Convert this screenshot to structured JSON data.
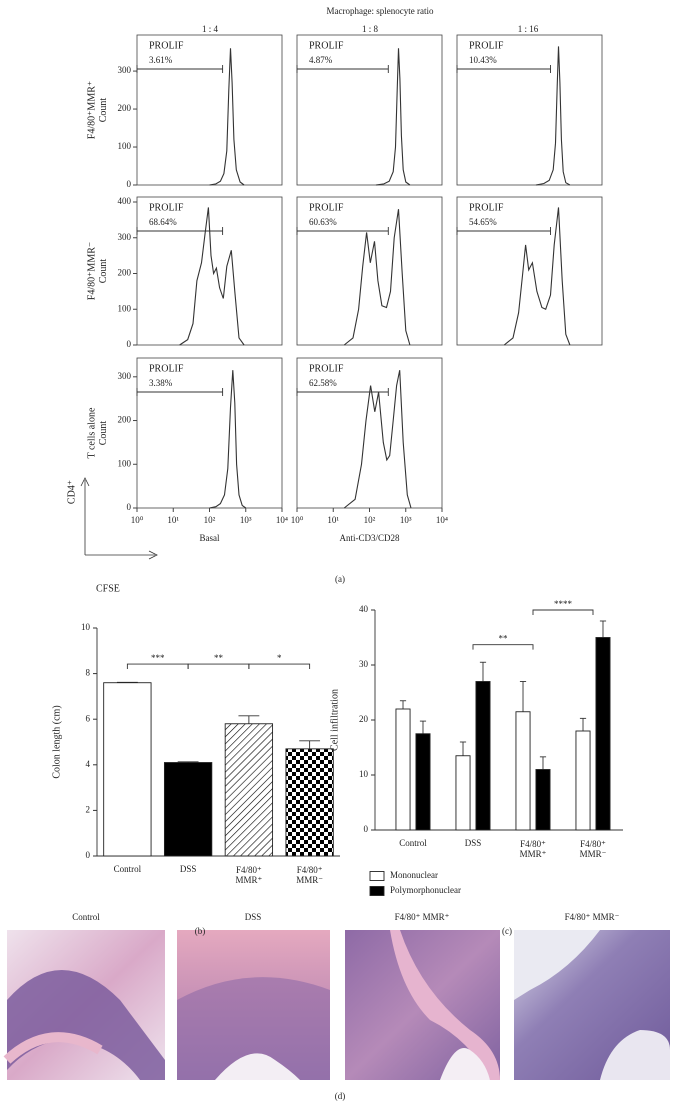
{
  "figure": {
    "header": "Macrophage: splenocyte ratio",
    "column_labels": [
      "1 : 4",
      "1 : 8",
      "1 : 16"
    ],
    "row_labels": [
      "F4/80⁺MMR⁺\nCount",
      "F4/80⁺MMR⁻\nCount",
      "T cells alone\nCount"
    ],
    "axis_key": {
      "y": "CD4⁺",
      "x": "CFSE"
    },
    "panel_labels": [
      "(a)",
      "(b)",
      "(c)",
      "(d)"
    ]
  },
  "chart_data": [
    {
      "type": "line",
      "xscale": "log",
      "xlim": [
        1,
        10000
      ],
      "ylim": [
        0,
        395
      ],
      "yticks": [
        0,
        100,
        200,
        300
      ],
      "color": "#333333",
      "annotation": [
        "PROLIF",
        "3.61%"
      ],
      "gate": [
        1,
        230
      ],
      "x": [
        100,
        150,
        200,
        250,
        300,
        340,
        380,
        420,
        470,
        550,
        700,
        900
      ],
      "values": [
        0,
        3,
        10,
        30,
        90,
        250,
        360,
        270,
        120,
        40,
        8,
        0
      ]
    },
    {
      "type": "line",
      "xscale": "log",
      "xlim": [
        1,
        10000
      ],
      "ylim": [
        0,
        395
      ],
      "color": "#333333",
      "annotation": [
        "PROLIF",
        "4.87%"
      ],
      "gate": [
        1,
        330
      ],
      "x": [
        150,
        250,
        350,
        450,
        520,
        580,
        630,
        690,
        760,
        850,
        1000,
        1300
      ],
      "values": [
        0,
        3,
        10,
        35,
        100,
        250,
        360,
        280,
        130,
        40,
        8,
        0
      ]
    },
    {
      "type": "line",
      "xscale": "log",
      "xlim": [
        1,
        10000
      ],
      "ylim": [
        0,
        395
      ],
      "color": "#333333",
      "annotation": [
        "PROLIF",
        "10.43%"
      ],
      "gate": [
        1,
        380
      ],
      "x": [
        150,
        250,
        350,
        450,
        520,
        580,
        630,
        690,
        760,
        850,
        1000,
        1300
      ],
      "values": [
        0,
        4,
        12,
        40,
        110,
        260,
        365,
        270,
        120,
        35,
        6,
        0
      ]
    },
    {
      "type": "line",
      "xscale": "log",
      "xlim": [
        1,
        10000
      ],
      "ylim": [
        0,
        414
      ],
      "yticks": [
        0,
        100,
        200,
        300,
        400
      ],
      "color": "#333333",
      "annotation": [
        "PROLIF",
        "68.64%"
      ],
      "gate": [
        1,
        230
      ],
      "x": [
        15,
        25,
        35,
        45,
        60,
        75,
        93,
        110,
        130,
        155,
        190,
        240,
        300,
        400,
        500,
        650,
        900
      ],
      "values": [
        0,
        15,
        60,
        180,
        230,
        310,
        385,
        250,
        200,
        215,
        160,
        130,
        220,
        265,
        150,
        20,
        0
      ]
    },
    {
      "type": "line",
      "xscale": "log",
      "xlim": [
        1,
        10000
      ],
      "ylim": [
        0,
        414
      ],
      "color": "#333333",
      "annotation": [
        "PROLIF",
        "60.63%"
      ],
      "gate": [
        1,
        330
      ],
      "x": [
        20,
        35,
        50,
        65,
        83,
        105,
        137,
        170,
        220,
        295,
        380,
        480,
        630,
        800,
        1000,
        1300
      ],
      "values": [
        0,
        20,
        100,
        220,
        315,
        230,
        290,
        180,
        110,
        105,
        150,
        300,
        380,
        200,
        40,
        0
      ]
    },
    {
      "type": "line",
      "xscale": "log",
      "xlim": [
        1,
        10000
      ],
      "ylim": [
        0,
        414
      ],
      "color": "#333333",
      "annotation": [
        "PROLIF",
        "54.65%"
      ],
      "gate": [
        1,
        380
      ],
      "x": [
        20,
        35,
        50,
        65,
        78,
        95,
        120,
        160,
        220,
        280,
        380,
        480,
        630,
        800,
        1000,
        1300
      ],
      "values": [
        0,
        20,
        90,
        200,
        280,
        210,
        230,
        150,
        105,
        100,
        140,
        280,
        385,
        180,
        30,
        0
      ]
    },
    {
      "type": "line",
      "xscale": "log",
      "xlim": [
        1,
        10000
      ],
      "ylim": [
        0,
        343
      ],
      "yticks": [
        0,
        100,
        200,
        300
      ],
      "color": "#333333",
      "xticks": [
        {
          "value": 1,
          "label": "10⁰"
        },
        {
          "value": 10,
          "label": "10¹"
        },
        {
          "value": 100,
          "label": "10²"
        },
        {
          "value": 1000,
          "label": "10³"
        },
        {
          "value": 10000,
          "label": "10⁴"
        }
      ],
      "xlabel": "Basal",
      "annotation": [
        "PROLIF",
        "3.38%"
      ],
      "gate": [
        1,
        230
      ],
      "x": [
        100,
        150,
        200,
        260,
        320,
        380,
        440,
        500,
        560,
        650,
        800,
        1000
      ],
      "values": [
        0,
        3,
        10,
        30,
        90,
        230,
        315,
        240,
        100,
        30,
        6,
        0
      ]
    },
    {
      "type": "line",
      "xscale": "log",
      "xlim": [
        1,
        10000
      ],
      "ylim": [
        0,
        343
      ],
      "color": "#333333",
      "xticks": [
        {
          "value": 1,
          "label": "10⁰"
        },
        {
          "value": 10,
          "label": "10¹"
        },
        {
          "value": 100,
          "label": "10²"
        },
        {
          "value": 1000,
          "label": "10³"
        },
        {
          "value": 10000,
          "label": "10⁴"
        }
      ],
      "xlabel": "Anti-CD3/CD28",
      "annotation": [
        "PROLIF",
        "62.58%"
      ],
      "gate": [
        1,
        330
      ],
      "x": [
        20,
        40,
        60,
        80,
        107,
        140,
        178,
        240,
        300,
        360,
        450,
        560,
        680,
        850,
        1100,
        1400
      ],
      "values": [
        0,
        20,
        100,
        200,
        280,
        220,
        265,
        150,
        110,
        120,
        200,
        280,
        315,
        150,
        30,
        0
      ]
    },
    {
      "type": "bar",
      "ylabel": "Colon length (cm)",
      "categories": [
        "Control",
        "DSS",
        "F4/80⁺\nMMR⁺",
        "F4/80⁺\nMMR⁻"
      ],
      "values": [
        7.6,
        4.1,
        5.8,
        4.7
      ],
      "errors": [
        0.02,
        0.03,
        0.35,
        0.35
      ],
      "patterns": [
        "white",
        "black",
        "hatch",
        "checker"
      ],
      "ylim": [
        0,
        10
      ],
      "yticks": [
        0,
        2,
        4,
        6,
        8,
        10
      ],
      "brackets": "aligned",
      "significance": [
        {
          "label": "***",
          "pair": [
            0,
            1
          ]
        },
        {
          "label": "**",
          "pair": [
            1,
            2
          ]
        },
        {
          "label": "*",
          "pair": [
            2,
            3
          ]
        }
      ]
    },
    {
      "type": "grouped-bar",
      "ylabel": "Cell infiltration",
      "categories": [
        "Control",
        "DSS",
        "F4/80⁺\nMMR⁺",
        "F4/80⁺\nMMR⁻"
      ],
      "series": [
        {
          "name": "Mononuclear",
          "color": "#ffffff",
          "values": [
            22,
            13.5,
            21.5,
            18
          ],
          "errors": [
            1.5,
            2.5,
            5.5,
            2.3
          ]
        },
        {
          "name": "Polymorphonuclear",
          "color": "#000000",
          "values": [
            17.5,
            27,
            11,
            35
          ],
          "errors": [
            2.3,
            3.5,
            2.3,
            3
          ]
        }
      ],
      "ylim": [
        0,
        40
      ],
      "yticks": [
        0,
        10,
        20,
        30,
        40
      ],
      "legend": "bottom-left",
      "brackets": "stepped",
      "significance": [
        {
          "label": "**",
          "pair": [
            1,
            2
          ]
        },
        {
          "label": "****",
          "pair": [
            2,
            3
          ]
        }
      ]
    }
  ],
  "images": [
    {
      "label": "Control"
    },
    {
      "label": "DSS"
    },
    {
      "label": "F4/80⁺ MMR⁺"
    },
    {
      "label": "F4/80⁺ MMR⁻"
    }
  ]
}
